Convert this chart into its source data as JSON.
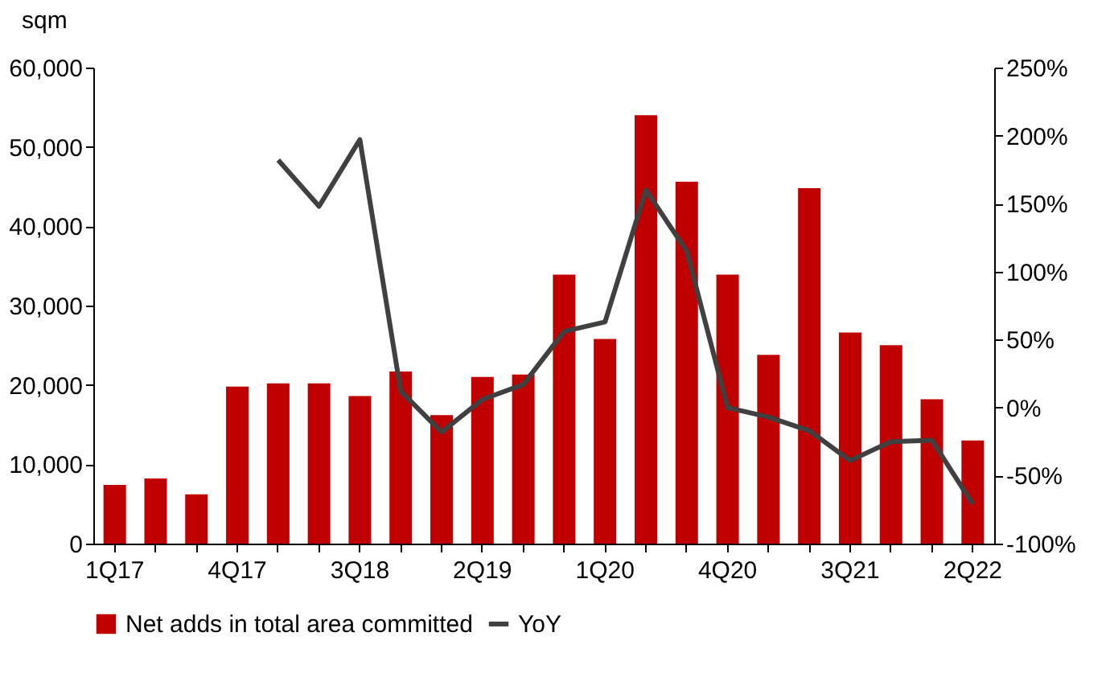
{
  "chart_data": {
    "type": "bar",
    "ylabel": "sqm",
    "categories": [
      "1Q17",
      null,
      null,
      "4Q17",
      null,
      null,
      "3Q18",
      null,
      null,
      "2Q19",
      null,
      null,
      "1Q20",
      null,
      null,
      "4Q20",
      null,
      null,
      "3Q21",
      null,
      null,
      "2Q22"
    ],
    "series": [
      {
        "name": "Net adds in total area committed",
        "color": "#c00000",
        "values": [
          7400,
          8200,
          6200,
          19800,
          20200,
          20200,
          18600,
          21700,
          16200,
          21000,
          21300,
          33900,
          25800,
          54000,
          45600,
          33900,
          23800,
          44800,
          26600,
          25000,
          18200,
          13000
        ]
      },
      {
        "name": "YoY",
        "type": "line",
        "axis": "y2",
        "color": "#404040",
        "values": [
          null,
          null,
          null,
          null,
          182,
          148,
          197,
          12,
          -18,
          6,
          17,
          56,
          63,
          160,
          115,
          0,
          -7,
          -17,
          -39,
          -25,
          -24,
          -71
        ]
      }
    ],
    "ylim": [
      0,
      60000
    ],
    "yticks": [
      0,
      {
        "value": 10000,
        "label": "10,000"
      },
      {
        "value": 20000,
        "label": "20,000"
      },
      {
        "value": 30000,
        "label": "30,000"
      },
      {
        "value": 40000,
        "label": "40,000"
      },
      {
        "value": 50000,
        "label": "50,000"
      },
      {
        "value": 60000,
        "label": "60,000"
      }
    ],
    "y2lim": [
      -100,
      250
    ],
    "y2ticks": [
      {
        "value": -100,
        "label": "-100%"
      },
      {
        "value": -50,
        "label": "-50%"
      },
      {
        "value": 0,
        "label": "0%"
      },
      {
        "value": 50,
        "label": "50%"
      },
      {
        "value": 100,
        "label": "100%"
      },
      {
        "value": 150,
        "label": "150%"
      },
      {
        "value": 200,
        "label": "200%"
      },
      {
        "value": 250,
        "label": "250%"
      }
    ],
    "grid": false,
    "legend": "bottom",
    "line_style": "solid",
    "marker": "none"
  }
}
